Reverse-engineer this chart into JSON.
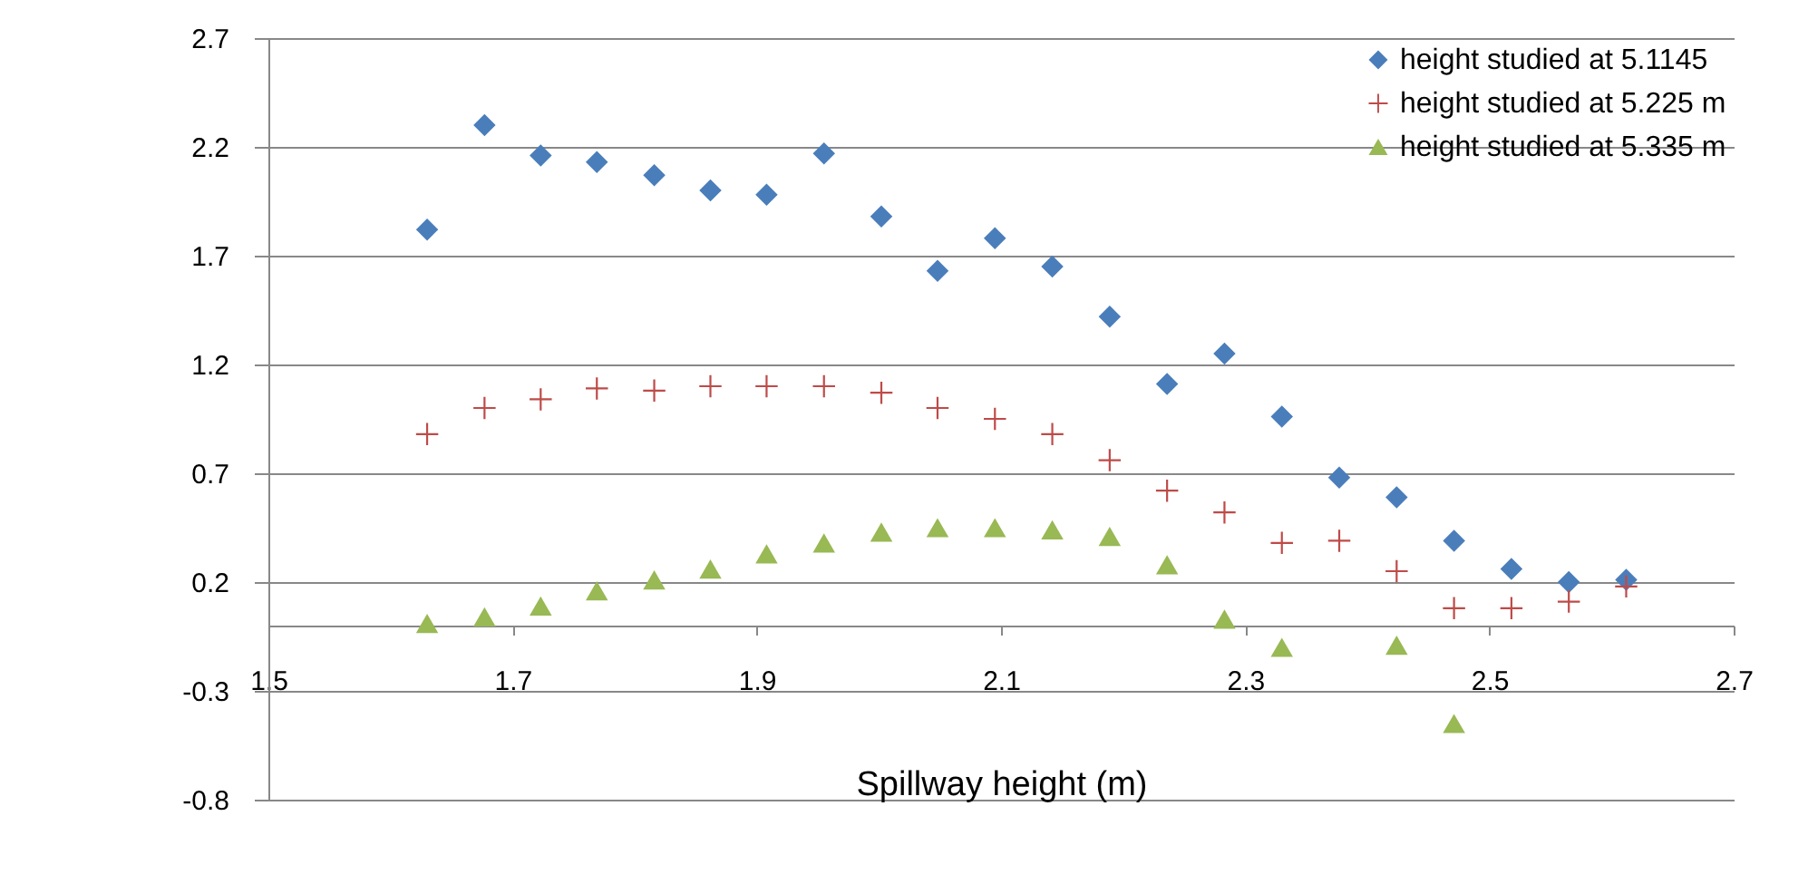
{
  "chart_data": {
    "type": "scatter",
    "xlabel": "Spillway height (m)",
    "xlim": [
      1.5,
      2.7
    ],
    "xticks": [
      1.5,
      1.7,
      1.9,
      2.1,
      2.3,
      2.5,
      2.7
    ],
    "ylim": [
      -0.8,
      2.7
    ],
    "yticks": [
      -0.8,
      -0.3,
      0.2,
      0.7,
      1.2,
      1.7,
      2.2,
      2.7
    ],
    "grid": "y",
    "legend": "top right",
    "series": [
      {
        "name": "height studied at 5.1145",
        "color": "#4a7ebb",
        "marker": "diamond",
        "x": [
          1.63,
          1.677,
          1.723,
          1.769,
          1.816,
          1.862,
          1.908,
          1.955,
          2.002,
          2.048,
          2.095,
          2.142,
          2.189,
          2.236,
          2.283,
          2.33,
          2.377,
          2.424,
          2.471,
          2.518,
          2.565,
          2.612
        ],
        "values": [
          1.82,
          2.3,
          2.16,
          2.13,
          2.07,
          2.0,
          1.98,
          2.17,
          1.88,
          1.63,
          1.78,
          1.65,
          1.42,
          1.11,
          1.25,
          0.96,
          0.68,
          0.59,
          0.39,
          0.26,
          0.2,
          0.21
        ]
      },
      {
        "name": "height studied at 5.225 m",
        "color": "#be4b48",
        "marker": "cross",
        "x": [
          1.63,
          1.677,
          1.723,
          1.769,
          1.816,
          1.862,
          1.908,
          1.955,
          2.002,
          2.048,
          2.095,
          2.142,
          2.189,
          2.236,
          2.283,
          2.33,
          2.377,
          2.424,
          2.471,
          2.518,
          2.565,
          2.612
        ],
        "values": [
          0.88,
          1.0,
          1.04,
          1.09,
          1.08,
          1.1,
          1.1,
          1.1,
          1.07,
          1.0,
          0.95,
          0.88,
          0.76,
          0.62,
          0.52,
          0.38,
          0.39,
          0.25,
          0.08,
          0.08,
          0.11,
          0.18
        ]
      },
      {
        "name": "height studied at 5.335 m",
        "color": "#98b954",
        "marker": "triangle",
        "x": [
          1.63,
          1.677,
          1.723,
          1.769,
          1.816,
          1.862,
          1.908,
          1.955,
          2.002,
          2.048,
          2.095,
          2.142,
          2.189,
          2.236,
          2.283,
          2.33,
          2.424,
          2.471
        ],
        "values": [
          0.01,
          0.04,
          0.09,
          0.16,
          0.21,
          0.26,
          0.33,
          0.38,
          0.43,
          0.45,
          0.45,
          0.44,
          0.41,
          0.28,
          0.03,
          -0.1,
          -0.09,
          -0.45
        ]
      }
    ]
  }
}
